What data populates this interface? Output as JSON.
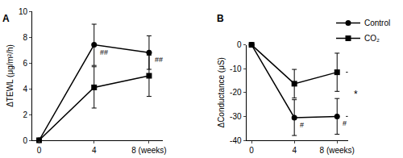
{
  "chart_data": [
    {
      "type": "line",
      "title": "A",
      "x_label": "",
      "y_label": "ΔTEWL (μg/m²/h)",
      "xlim": [
        -0.5,
        9
      ],
      "xticks": [
        0,
        4,
        {
          "value": 8,
          "label": "8 (weeks)"
        }
      ],
      "ylim": [
        0,
        10
      ],
      "yticks": [
        0,
        2,
        4,
        6,
        8,
        10
      ],
      "grid": false,
      "series": [
        {
          "name": "Control",
          "color": "#000000",
          "marker": "circle",
          "line_style": "solid",
          "x": [
            0,
            4,
            8
          ],
          "values": [
            0,
            7.4,
            6.8
          ],
          "errors": [
            0,
            1.6,
            1.3
          ]
        },
        {
          "name": "CO₂",
          "color": "#000000",
          "marker": "square",
          "line_style": "solid",
          "x": [
            0,
            4,
            8
          ],
          "values": [
            0,
            4.1,
            5.0
          ],
          "errors": [
            0,
            1.6,
            1.6
          ]
        }
      ],
      "annotations": [
        {
          "text": "##",
          "series": "Control",
          "x": 4
        },
        {
          "text": "##",
          "series": "Control",
          "x": 8
        }
      ]
    },
    {
      "type": "line",
      "title": "B",
      "x_label": "",
      "y_label": "ΔConductance (μS)",
      "xlim": [
        -0.5,
        9
      ],
      "xticks": [
        0,
        4,
        {
          "value": 8,
          "label": "8 (weeks)"
        }
      ],
      "ylim": [
        -40,
        0
      ],
      "yticks": [
        -40,
        -30,
        -20,
        -10,
        0
      ],
      "grid": false,
      "legend": "top right",
      "series": [
        {
          "name": "Control",
          "color": "#000000",
          "marker": "circle",
          "line_style": "solid",
          "x": [
            0,
            4,
            8
          ],
          "values": [
            0,
            -30.5,
            -30
          ],
          "errors": [
            0,
            7.5,
            7.5
          ]
        },
        {
          "name": "CO₂",
          "color": "#000000",
          "marker": "square",
          "line_style": "solid",
          "x": [
            0,
            4,
            8
          ],
          "values": [
            0,
            -16.3,
            -11.5
          ],
          "errors": [
            0,
            6,
            8
          ]
        }
      ],
      "annotations": [
        {
          "text": "#",
          "series": "Control",
          "x": 4
        },
        {
          "text": "#",
          "series": "Control",
          "x": 8
        },
        {
          "text": "*",
          "x": 8,
          "between": [
            "Control",
            "CO₂"
          ]
        }
      ]
    }
  ]
}
